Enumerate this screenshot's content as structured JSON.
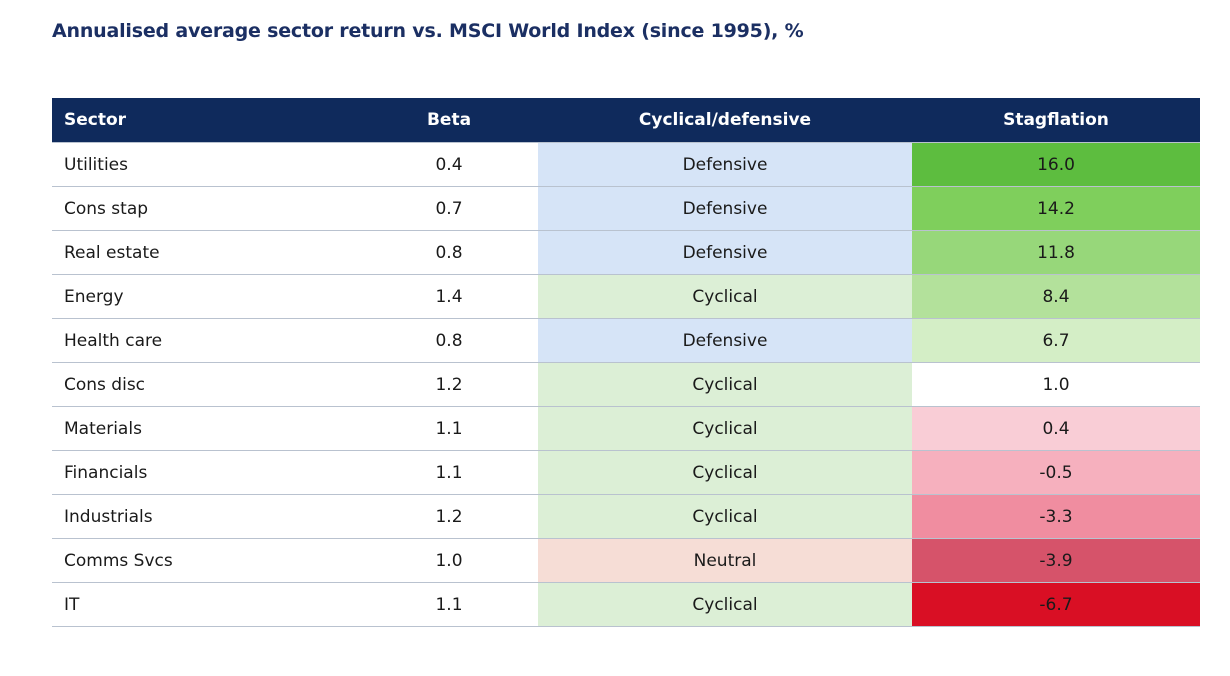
{
  "chart_data": {
    "type": "table",
    "title": "Annualised average sector return vs. MSCI World Index (since 1995), %",
    "columns": [
      "Sector",
      "Beta",
      "Cyclical/defensive",
      "Stagflation"
    ],
    "rows": [
      {
        "sector": "Utilities",
        "beta": "0.4",
        "type": "Defensive",
        "stagflation": "16.0"
      },
      {
        "sector": "Cons stap",
        "beta": "0.7",
        "type": "Defensive",
        "stagflation": "14.2"
      },
      {
        "sector": "Real estate",
        "beta": "0.8",
        "type": "Defensive",
        "stagflation": "11.8"
      },
      {
        "sector": "Energy",
        "beta": "1.4",
        "type": "Cyclical",
        "stagflation": "8.4"
      },
      {
        "sector": "Health care",
        "beta": "0.8",
        "type": "Defensive",
        "stagflation": "6.7"
      },
      {
        "sector": "Cons disc",
        "beta": "1.2",
        "type": "Cyclical",
        "stagflation": "1.0"
      },
      {
        "sector": "Materials",
        "beta": "1.1",
        "type": "Cyclical",
        "stagflation": "0.4"
      },
      {
        "sector": "Financials",
        "beta": "1.1",
        "type": "Cyclical",
        "stagflation": "-0.5"
      },
      {
        "sector": "Industrials",
        "beta": "1.2",
        "type": "Cyclical",
        "stagflation": "-3.3"
      },
      {
        "sector": "Comms Svcs",
        "beta": "1.0",
        "type": "Neutral",
        "stagflation": "-3.9"
      },
      {
        "sector": "IT",
        "beta": "1.1",
        "type": "Cyclical",
        "stagflation": "-6.7"
      }
    ]
  },
  "colors": {
    "header_bg": "#0f2a5c",
    "title": "#1b2f63",
    "type_defensive": "#d6e4f7",
    "type_cyclical": "#dcefd6",
    "type_neutral": "#f6ddd6",
    "stagflation_scale": [
      "#5dbd3f",
      "#7fcf5c",
      "#97d77a",
      "#b3e19b",
      "#d4eec6",
      "#ffffff",
      "#f9cdd6",
      "#f6b0be",
      "#f08da0",
      "#d6536a",
      "#d90f24"
    ]
  }
}
